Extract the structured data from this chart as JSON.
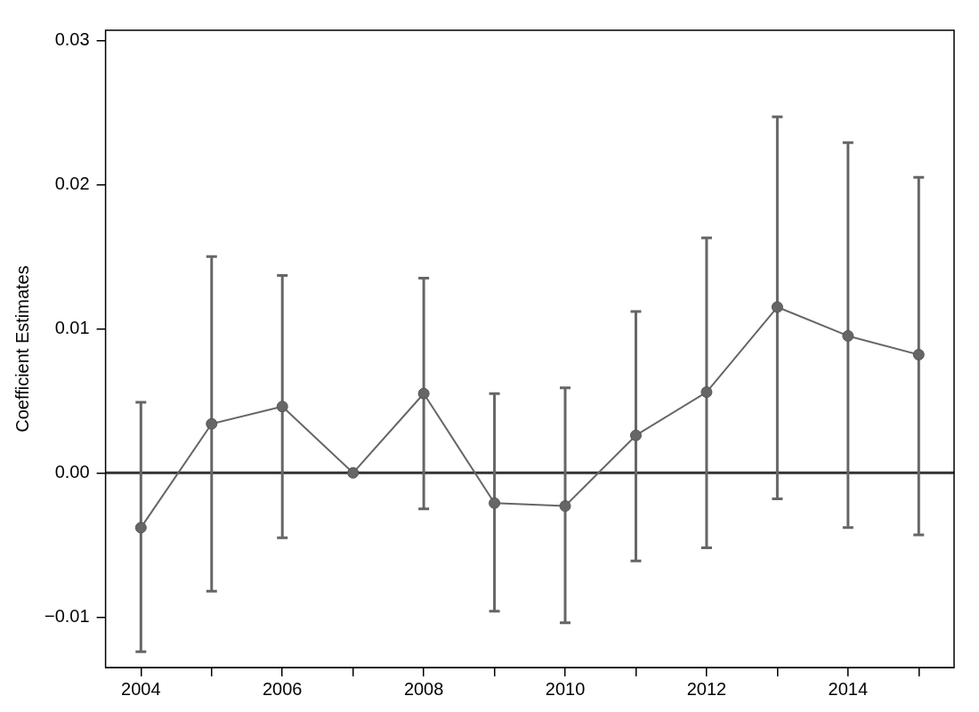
{
  "chart_data": {
    "type": "line",
    "ylabel": "Coefficient Estimates",
    "x": [
      2004,
      2005,
      2006,
      2007,
      2008,
      2009,
      2010,
      2011,
      2012,
      2013,
      2014,
      2015
    ],
    "series": [
      {
        "color": "#666666",
        "values": [
          -0.0038,
          0.0034,
          0.0046,
          0.0,
          0.0055,
          -0.0021,
          -0.0023,
          0.0026,
          0.0056,
          0.0115,
          0.0095,
          0.0082
        ],
        "errors": [
          [
            -0.0124,
            0.0049
          ],
          [
            -0.0082,
            0.015
          ],
          [
            -0.0045,
            0.0137
          ],
          null,
          [
            -0.0025,
            0.0135
          ],
          [
            -0.0096,
            0.0055
          ],
          [
            -0.0104,
            0.0059
          ],
          [
            -0.0061,
            0.0112
          ],
          [
            -0.0052,
            0.0163
          ],
          [
            -0.0018,
            0.0247
          ],
          [
            -0.0038,
            0.0229
          ],
          [
            -0.0043,
            0.0205
          ]
        ]
      }
    ],
    "xlim": [
      2003.5,
      2015.5
    ],
    "xticks": [
      2004,
      {
        "value": 2005,
        "label": null
      },
      2006,
      {
        "value": 2007,
        "label": null
      },
      2008,
      {
        "value": 2009,
        "label": null
      },
      2010,
      {
        "value": 2011,
        "label": null
      },
      2012,
      {
        "value": 2013,
        "label": null
      },
      2014,
      {
        "value": 2015,
        "label": null
      }
    ],
    "ylim": [
      -0.0135,
      0.0307
    ],
    "yticks": [
      {
        "value": -0.01,
        "label": "−0.01"
      },
      {
        "value": 0,
        "label": "0.00"
      },
      {
        "value": 0.01,
        "label": "0.01"
      },
      {
        "value": 0.02,
        "label": "0.02"
      },
      {
        "value": 0.03,
        "label": "0.03"
      }
    ],
    "ref_lines": [
      {
        "axis": "y",
        "value": 0,
        "color": "#333333"
      }
    ],
    "marker": "circle",
    "line_style": "solid",
    "grid": false,
    "legend": false
  }
}
